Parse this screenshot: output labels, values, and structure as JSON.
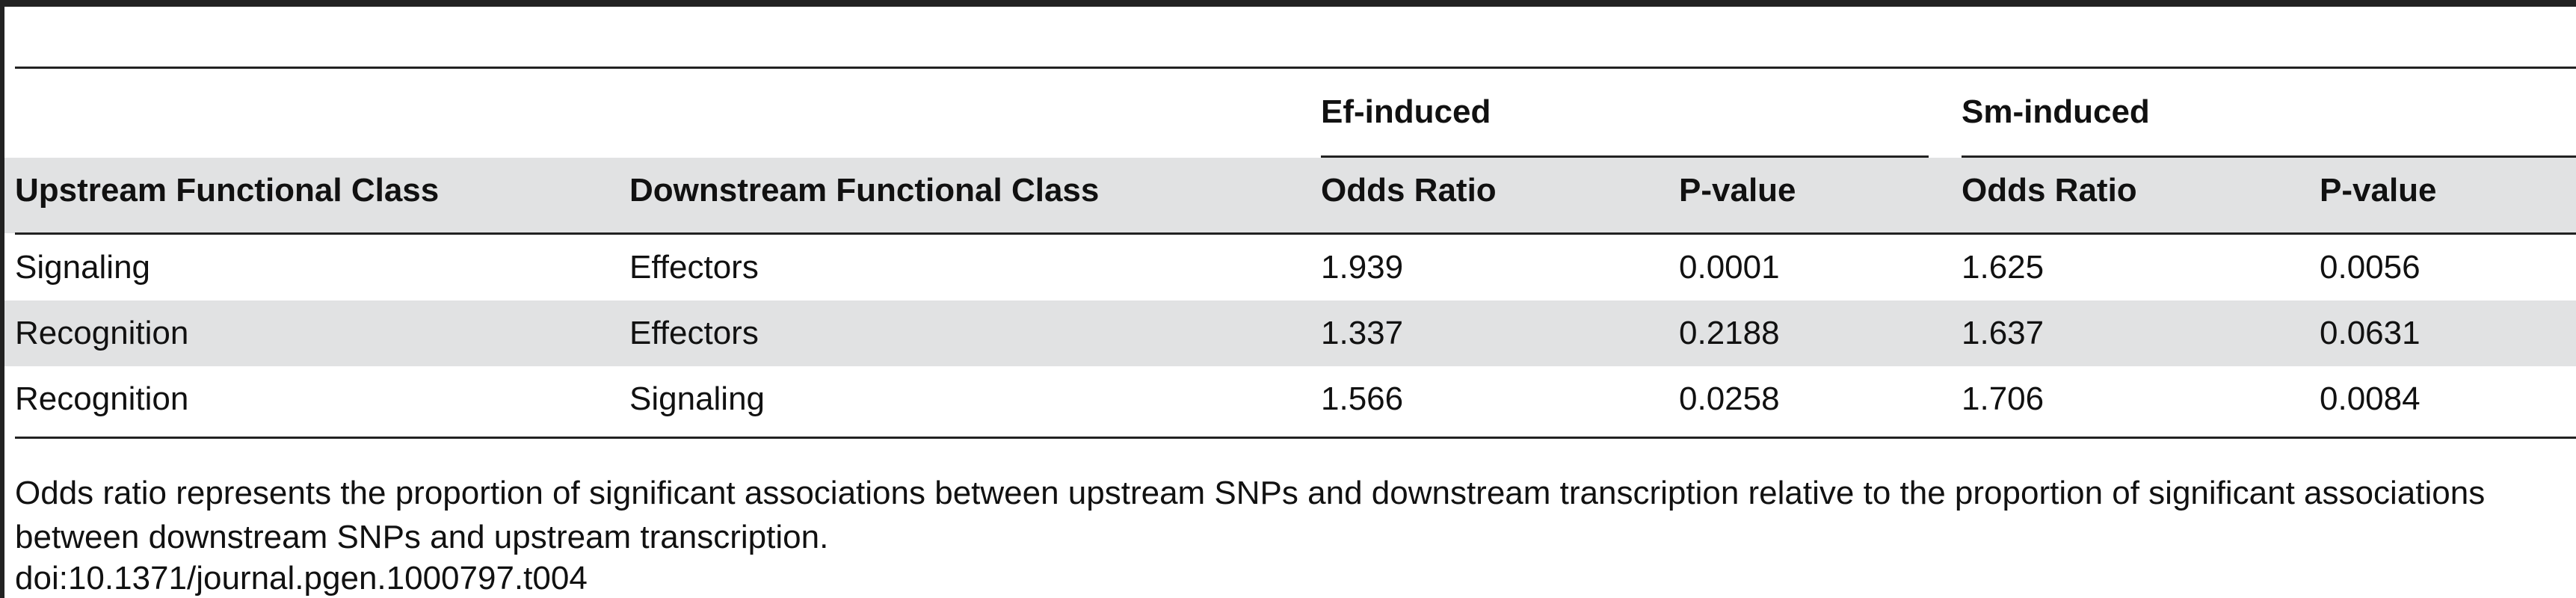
{
  "table": {
    "group_headers": [
      "Ef-induced",
      "Sm-induced"
    ],
    "columns": [
      "Upstream Functional Class",
      "Downstream Functional Class",
      "Odds Ratio",
      "P-value",
      "Odds Ratio",
      "P-value"
    ],
    "rows": [
      [
        "Signaling",
        "Effectors",
        "1.939",
        "0.0001",
        "1.625",
        "0.0056"
      ],
      [
        "Recognition",
        "Effectors",
        "1.337",
        "0.2188",
        "1.637",
        "0.0631"
      ],
      [
        "Recognition",
        "Signaling",
        "1.566",
        "0.0258",
        "1.706",
        "0.0084"
      ]
    ]
  },
  "footnote": "Odds ratio represents the proportion of significant associations between upstream SNPs and downstream transcription relative to the proportion of significant associations between downstream SNPs and upstream transcription.",
  "doi": "doi:10.1371/journal.pgen.1000797.t004"
}
